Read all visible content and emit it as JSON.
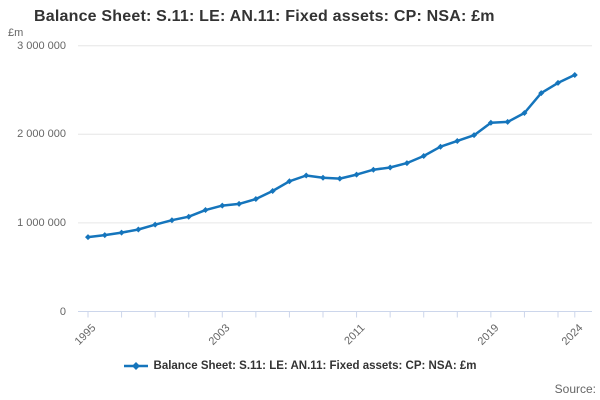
{
  "chart_data": {
    "type": "line",
    "title": "Balance Sheet: S.11: LE: AN.11: Fixed assets: CP: NSA: £m",
    "unit_label": "£m",
    "x": [
      1995,
      1996,
      1997,
      1998,
      1999,
      2000,
      2001,
      2002,
      2003,
      2004,
      2005,
      2006,
      2007,
      2008,
      2009,
      2010,
      2011,
      2012,
      2013,
      2014,
      2015,
      2016,
      2017,
      2018,
      2019,
      2020,
      2021,
      2022,
      2023,
      2024
    ],
    "series": [
      {
        "name": "Balance Sheet: S.11: LE: AN.11: Fixed assets: CP: NSA: £m",
        "color": "#1575bc",
        "values": [
          840000,
          862000,
          890000,
          925000,
          980000,
          1030000,
          1070000,
          1145000,
          1195000,
          1215000,
          1270000,
          1360000,
          1470000,
          1535000,
          1510000,
          1500000,
          1545000,
          1600000,
          1625000,
          1675000,
          1755000,
          1860000,
          1925000,
          1990000,
          2130000,
          2140000,
          2240000,
          2465000,
          2580000,
          2670000
        ]
      }
    ],
    "ylim": [
      0,
      3000000
    ],
    "yticks": [
      0,
      1000000,
      2000000,
      3000000
    ],
    "ytick_labels": [
      "0",
      "1 000 000",
      "2 000 000",
      "3 000 000"
    ],
    "xtick_years_labeled": [
      "1995",
      "2003",
      "2011",
      "2019",
      "2024"
    ],
    "xtick_minor_step_years": 2,
    "grid": true,
    "legend_position": "bottom"
  },
  "footer": {
    "source_label": "Source:"
  },
  "colors": {
    "line": "#1575bc",
    "grid": "#e6e6e6",
    "axis": "#ccd6eb",
    "label_text": "#666666",
    "title_text": "#333333"
  }
}
